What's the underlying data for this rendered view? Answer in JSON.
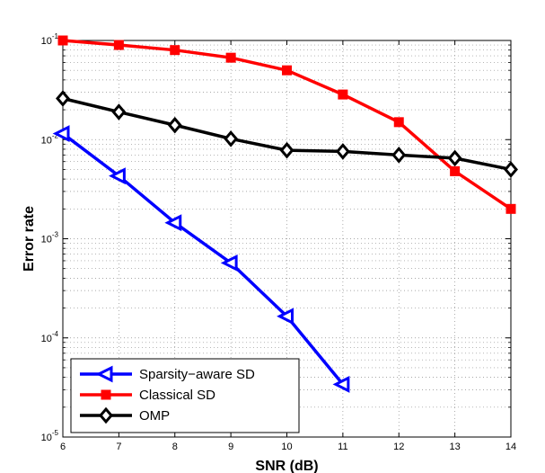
{
  "chart_data": {
    "type": "line",
    "title": "",
    "xlabel": "SNR (dB)",
    "ylabel": "Error rate",
    "xlim": [
      6,
      14
    ],
    "ylim": [
      1e-05,
      0.1
    ],
    "yscale": "log",
    "grid": true,
    "x_ticks": [
      6,
      7,
      8,
      9,
      10,
      11,
      12,
      13,
      14
    ],
    "x_tick_labels": [
      "6",
      "7",
      "8",
      "9",
      "10",
      "11",
      "12",
      "13",
      "14"
    ],
    "y_ticks": [
      1e-05,
      0.0001,
      0.001,
      0.01,
      0.1
    ],
    "y_tick_labels": [
      {
        "base": "10",
        "exp": "-5"
      },
      {
        "base": "10",
        "exp": "-4"
      },
      {
        "base": "10",
        "exp": "-3"
      },
      {
        "base": "10",
        "exp": "-2"
      },
      {
        "base": "10",
        "exp": "-1"
      }
    ],
    "legend_position": "bottom-left",
    "series": [
      {
        "name": "Sparsity−aware SD",
        "color": "#0000ff",
        "marker": "triangle-left",
        "x": [
          6,
          7,
          8,
          9,
          10,
          11
        ],
        "values": [
          0.0115,
          0.0043,
          0.00145,
          0.00057,
          0.000165,
          3.4e-05
        ]
      },
      {
        "name": "Classical SD",
        "color": "#ff0000",
        "marker": "square",
        "x": [
          6,
          7,
          8,
          9,
          10,
          11,
          12,
          13,
          14
        ],
        "values": [
          0.1,
          0.09,
          0.08,
          0.067,
          0.05,
          0.0285,
          0.015,
          0.0048,
          0.002
        ]
      },
      {
        "name": "OMP",
        "color": "#000000",
        "marker": "diamond",
        "x": [
          6,
          7,
          8,
          9,
          10,
          11,
          12,
          13,
          14
        ],
        "values": [
          0.026,
          0.019,
          0.014,
          0.0102,
          0.0078,
          0.0076,
          0.007,
          0.0065,
          0.005
        ]
      }
    ]
  }
}
